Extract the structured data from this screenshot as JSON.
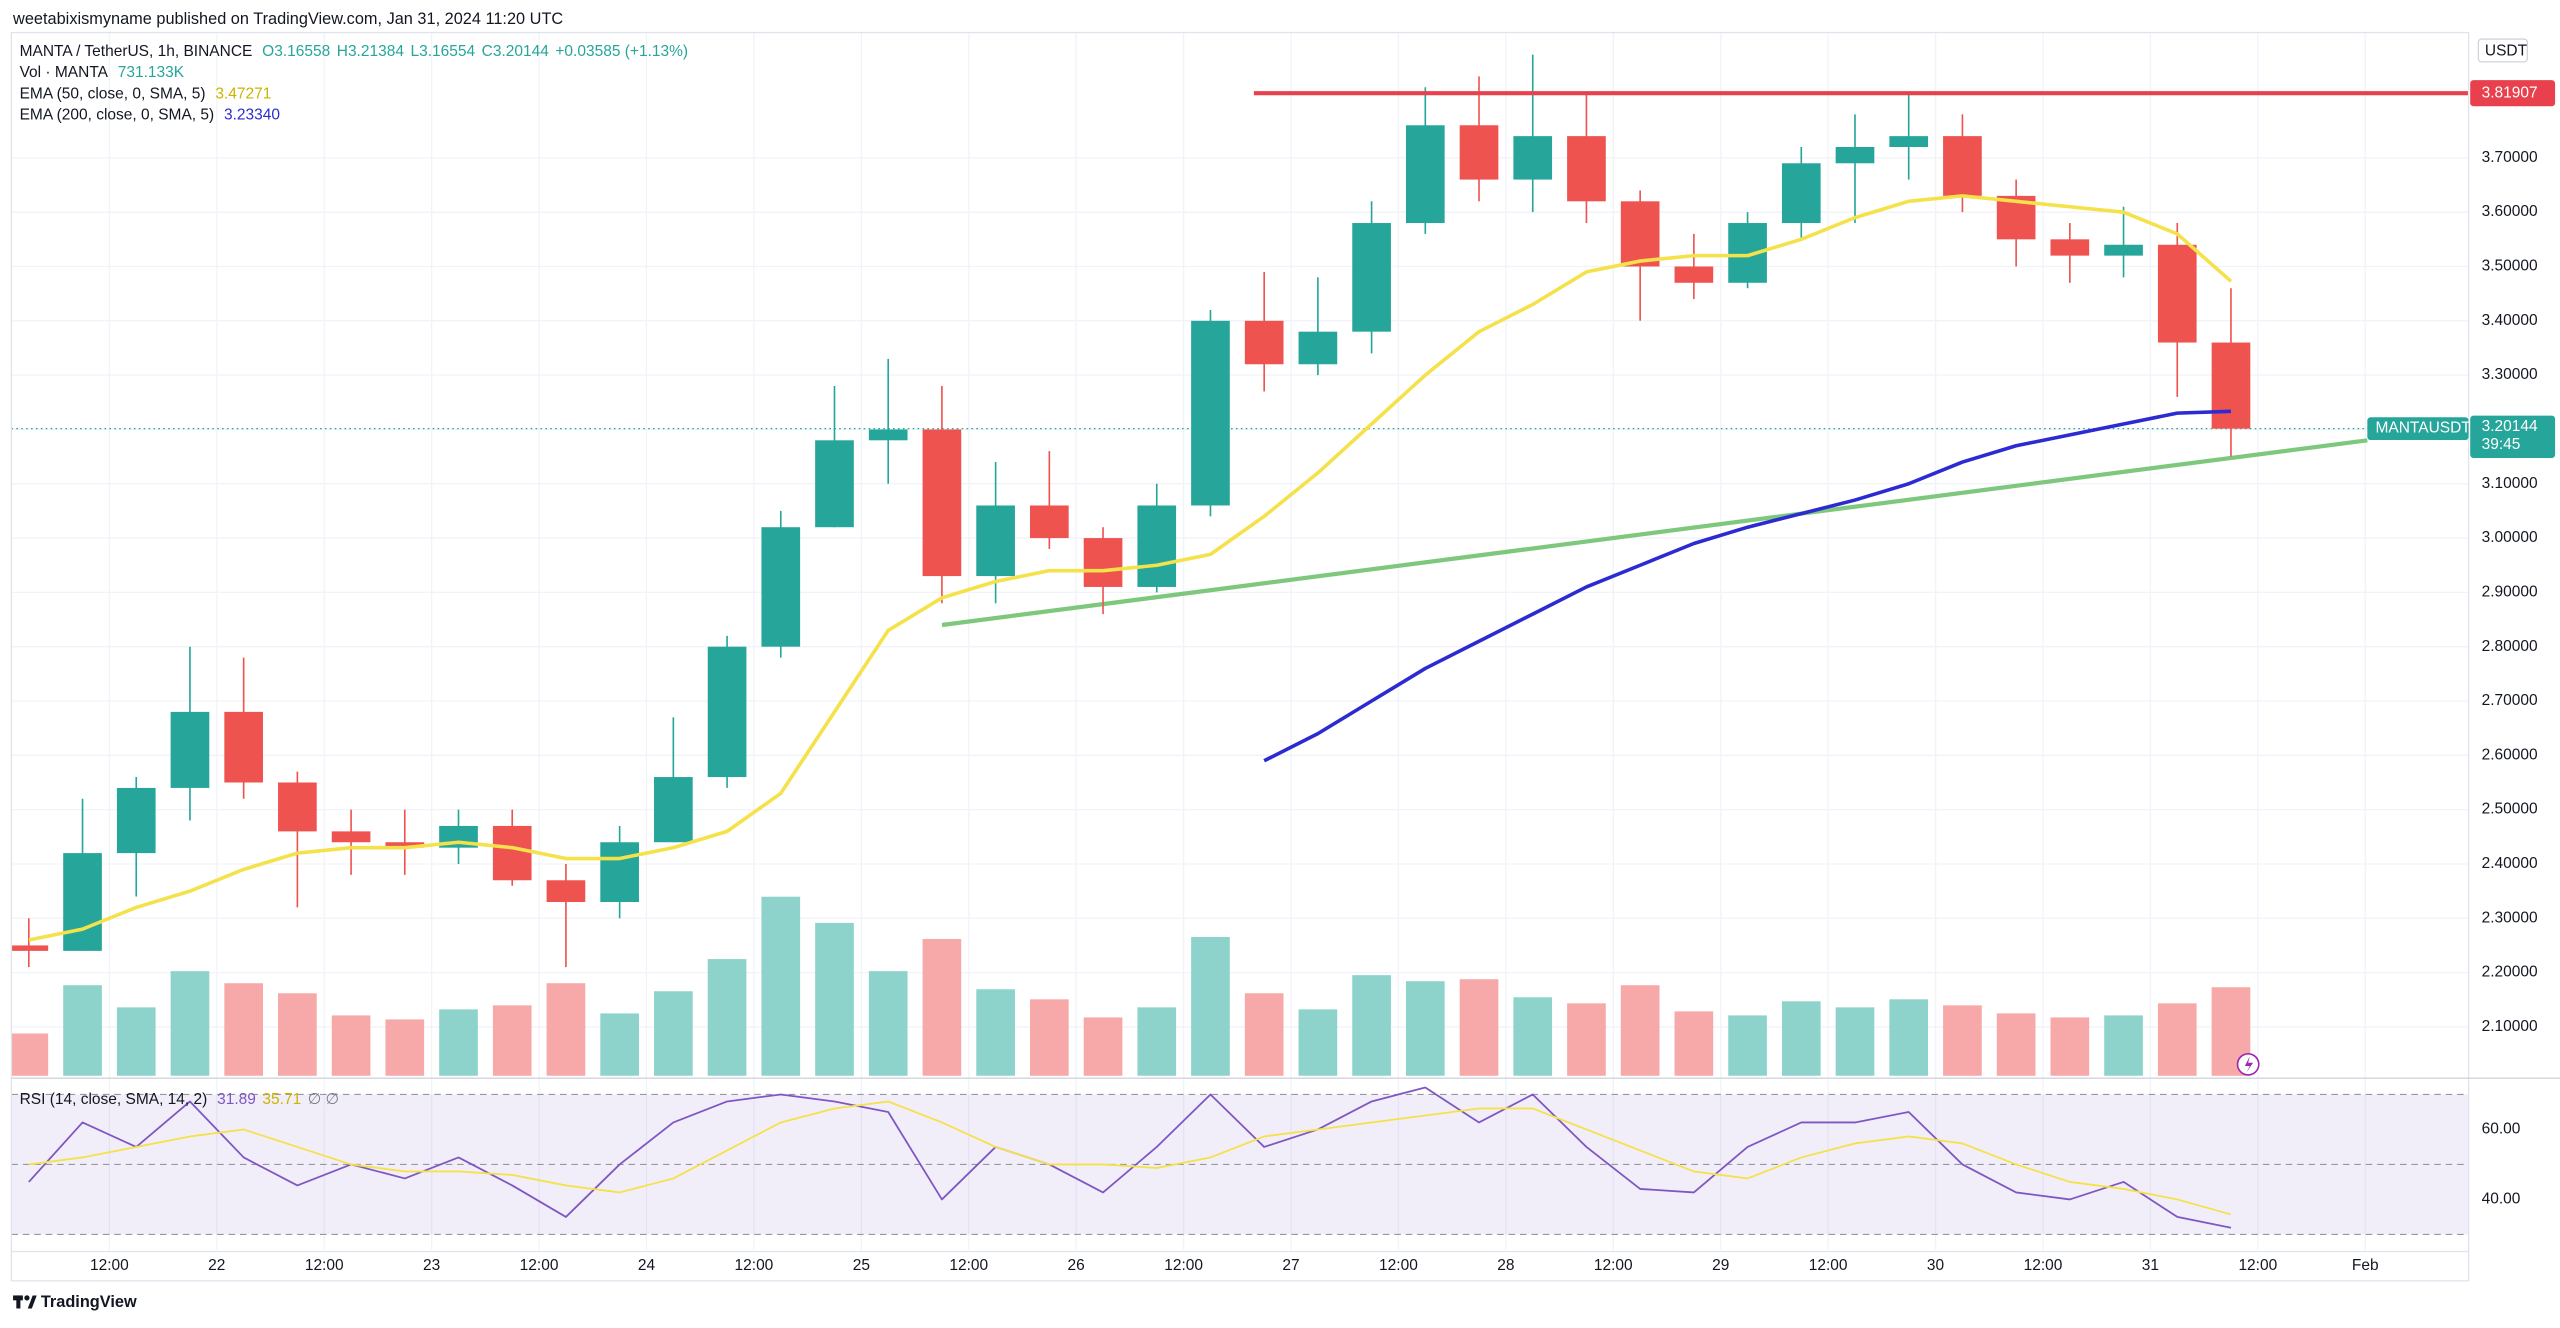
{
  "header": {
    "title": "weetabixismyname published on TradingView.com, Jan 31, 2024 11:20 UTC"
  },
  "footer": {
    "brand": "TradingView"
  },
  "chart_data": [
    {
      "type": "candlestick",
      "title": "MANTA / TetherUS, 1h, BINANCE",
      "ohlc_labels": [
        "O3.16558",
        "H3.21384",
        "L3.16554",
        "C3.20144",
        "+0.03585 (+1.13%)"
      ],
      "categories": [
        null,
        null,
        "12:00",
        null,
        "22",
        null,
        "12:00",
        null,
        "23",
        null,
        "12:00",
        null,
        "24",
        null,
        "12:00",
        null,
        "25",
        null,
        "12:00",
        null,
        "26",
        null,
        "12:00",
        null,
        "27",
        null,
        "12:00",
        null,
        "28",
        null,
        "12:00",
        null,
        "29",
        null,
        "12:00",
        null,
        "30",
        null,
        "12:00",
        null,
        "31",
        null,
        "12:00",
        null,
        "Feb"
      ],
      "open": [
        2.25,
        2.24,
        2.42,
        2.54,
        2.68,
        2.55,
        2.46,
        2.44,
        2.43,
        2.47,
        2.37,
        2.33,
        2.44,
        2.56,
        2.8,
        3.02,
        3.18,
        3.2,
        2.93,
        3.06,
        3.0,
        2.91,
        3.06,
        3.4,
        3.32,
        3.38,
        3.58,
        3.76,
        3.66,
        3.74,
        3.62,
        3.5,
        3.47,
        3.58,
        3.69,
        3.72,
        3.74,
        3.63,
        3.55,
        3.52,
        3.54,
        3.36,
        null,
        null,
        null
      ],
      "high": [
        2.3,
        2.52,
        2.56,
        2.8,
        2.78,
        2.57,
        2.5,
        2.5,
        2.5,
        2.5,
        2.4,
        2.47,
        2.67,
        2.82,
        3.05,
        3.28,
        3.33,
        3.28,
        3.14,
        3.16,
        3.02,
        3.1,
        3.42,
        3.49,
        3.48,
        3.62,
        3.83,
        3.85,
        3.89,
        3.82,
        3.64,
        3.56,
        3.6,
        3.72,
        3.78,
        3.82,
        3.78,
        3.66,
        3.58,
        3.61,
        3.58,
        3.46,
        null,
        null,
        null
      ],
      "low": [
        2.21,
        2.24,
        2.34,
        2.48,
        2.52,
        2.32,
        2.38,
        2.38,
        2.4,
        2.36,
        2.21,
        2.3,
        2.44,
        2.54,
        2.78,
        3.02,
        3.1,
        2.88,
        2.88,
        2.98,
        2.86,
        2.9,
        3.04,
        3.27,
        3.3,
        3.34,
        3.56,
        3.62,
        3.6,
        3.58,
        3.4,
        3.44,
        3.46,
        3.55,
        3.58,
        3.66,
        3.6,
        3.5,
        3.47,
        3.48,
        3.26,
        3.15,
        null,
        null,
        null
      ],
      "close": [
        2.24,
        2.42,
        2.54,
        2.68,
        2.55,
        2.46,
        2.44,
        2.43,
        2.47,
        2.37,
        2.33,
        2.44,
        2.56,
        2.8,
        3.02,
        3.18,
        3.2,
        2.93,
        3.06,
        3.0,
        2.91,
        3.06,
        3.4,
        3.32,
        3.38,
        3.58,
        3.76,
        3.66,
        3.74,
        3.62,
        3.5,
        3.47,
        3.58,
        3.69,
        3.72,
        3.74,
        3.63,
        3.55,
        3.52,
        3.54,
        3.36,
        3.20144,
        null,
        null,
        null
      ],
      "up_color": "#26a69a",
      "down_color": "#ef5350",
      "volume": {
        "title": "Vol · MANTA",
        "value_label": "731.133K",
        "up_color": "#8ed3cb",
        "down_color": "#f6a9a8",
        "values": [
          2100000,
          4500000,
          3400000,
          5200000,
          4600000,
          4100000,
          3000000,
          2800000,
          3300000,
          3500000,
          4600000,
          3100000,
          4200000,
          5800000,
          8900000,
          7600000,
          5200000,
          6800000,
          4300000,
          3800000,
          2900000,
          3400000,
          6900000,
          4100000,
          3300000,
          5000000,
          4700000,
          4800000,
          3900000,
          3600000,
          4500000,
          3200000,
          3000000,
          3700000,
          3400000,
          3800000,
          3500000,
          3100000,
          2900000,
          3000000,
          3600000,
          4400000,
          null,
          null,
          null
        ]
      },
      "series": [
        {
          "name": "EMA (50, close, 0, SMA, 5)",
          "color": "#f5e14a",
          "value_label": "3.47271",
          "values": [
            2.26,
            2.28,
            2.32,
            2.35,
            2.39,
            2.42,
            2.43,
            2.43,
            2.44,
            2.43,
            2.41,
            2.41,
            2.43,
            2.46,
            2.53,
            2.68,
            2.83,
            2.89,
            2.92,
            2.94,
            2.94,
            2.95,
            2.97,
            3.04,
            3.12,
            3.21,
            3.3,
            3.38,
            3.43,
            3.49,
            3.51,
            3.52,
            3.52,
            3.55,
            3.59,
            3.62,
            3.63,
            3.62,
            3.61,
            3.6,
            3.56,
            3.47271,
            null,
            null,
            null
          ]
        },
        {
          "name": "EMA (200, close, 0, SMA, 5)",
          "color": "#2b2bd1",
          "value_label": "3.23340",
          "values": [
            null,
            null,
            null,
            null,
            null,
            null,
            null,
            null,
            null,
            null,
            null,
            null,
            null,
            null,
            null,
            null,
            null,
            null,
            null,
            null,
            null,
            null,
            null,
            2.59,
            2.64,
            2.7,
            2.76,
            2.81,
            2.86,
            2.91,
            2.95,
            2.99,
            3.02,
            3.045,
            3.07,
            3.1,
            3.14,
            3.17,
            3.19,
            3.21,
            3.23,
            3.2334,
            null,
            null,
            null
          ]
        }
      ],
      "y_unit": "USDT",
      "ylim": [
        2.0101,
        3.9307
      ],
      "yticks": [
        {
          "value": 2.1,
          "label": "2.10000"
        },
        {
          "value": 2.2,
          "label": "2.20000"
        },
        {
          "value": 2.3,
          "label": "2.30000"
        },
        {
          "value": 2.4,
          "label": "2.40000"
        },
        {
          "value": 2.5,
          "label": "2.50000"
        },
        {
          "value": 2.6,
          "label": "2.60000"
        },
        {
          "value": 2.7,
          "label": "2.70000"
        },
        {
          "value": 2.8,
          "label": "2.80000"
        },
        {
          "value": 2.9,
          "label": "2.90000"
        },
        {
          "value": 3.0,
          "label": "3.00000"
        },
        {
          "value": 3.1,
          "label": "3.10000"
        },
        {
          "value": 3.2,
          "label": "3.20000"
        },
        {
          "value": 3.3,
          "label": "3.30000"
        },
        {
          "value": 3.4,
          "label": "3.40000"
        },
        {
          "value": 3.5,
          "label": "3.50000"
        },
        {
          "value": 3.6,
          "label": "3.60000"
        },
        {
          "value": 3.7,
          "label": "3.70000"
        }
      ],
      "grid": true,
      "resistance": {
        "value": 3.81907,
        "color": "#e8404c"
      },
      "trendline": {
        "start": 2.84,
        "end": 3.18,
        "color": "#7ec87e"
      },
      "last_price": {
        "symbol": "MANTAUSDT",
        "value": 3.20144,
        "countdown": "39:45",
        "color": "#26a69a"
      }
    },
    {
      "type": "line",
      "title": "RSI (14, close, SMA, 14, 2)",
      "flags": "∅ ∅",
      "series": [
        {
          "color": "#7e57c2",
          "value_label": "31.89",
          "values": [
            45,
            62,
            55,
            68,
            52,
            44,
            50,
            46,
            52,
            44,
            35,
            50,
            62,
            68,
            70,
            68,
            65,
            40,
            55,
            50,
            42,
            55,
            70,
            55,
            60,
            68,
            72,
            62,
            70,
            55,
            43,
            42,
            55,
            62,
            62,
            65,
            50,
            42,
            40,
            45,
            35,
            31.89,
            null,
            null,
            null
          ]
        },
        {
          "color": "#f5e14a",
          "value_label": "35.71",
          "values": [
            50,
            52,
            55,
            58,
            60,
            55,
            50,
            48,
            48,
            47,
            44,
            42,
            46,
            54,
            62,
            66,
            68,
            62,
            55,
            50,
            50,
            49,
            52,
            58,
            60,
            62,
            64,
            66,
            66,
            60,
            54,
            48,
            46,
            52,
            56,
            58,
            56,
            50,
            45,
            43,
            40,
            35.71,
            null,
            null,
            null
          ]
        }
      ],
      "ylim": [
        25.58,
        74.42
      ],
      "yticks": [
        {
          "value": 40,
          "label": "40.00"
        },
        {
          "value": 60,
          "label": "60.00"
        }
      ],
      "bands": [
        30,
        50,
        70
      ],
      "band_color": "#7e57c2"
    }
  ]
}
